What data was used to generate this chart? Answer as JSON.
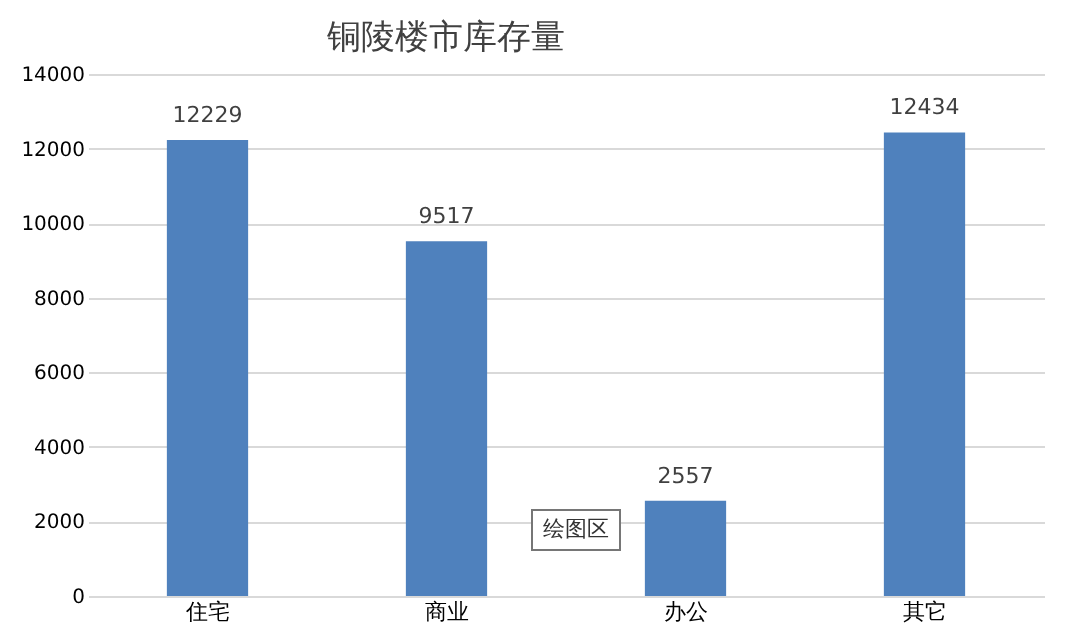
{
  "chart_data": {
    "type": "bar",
    "title": "铜陵楼市库存量",
    "categories": [
      "住宅",
      "商业",
      "办公",
      "其它"
    ],
    "values": [
      12229,
      9517,
      2557,
      12434
    ],
    "color": "#4f81bd",
    "ylim": [
      0,
      14000
    ],
    "yticks": [
      0,
      2000,
      4000,
      6000,
      8000,
      10000,
      12000,
      14000
    ],
    "grid": "y",
    "data_labels": true,
    "annotations": [
      "绘图区"
    ]
  }
}
